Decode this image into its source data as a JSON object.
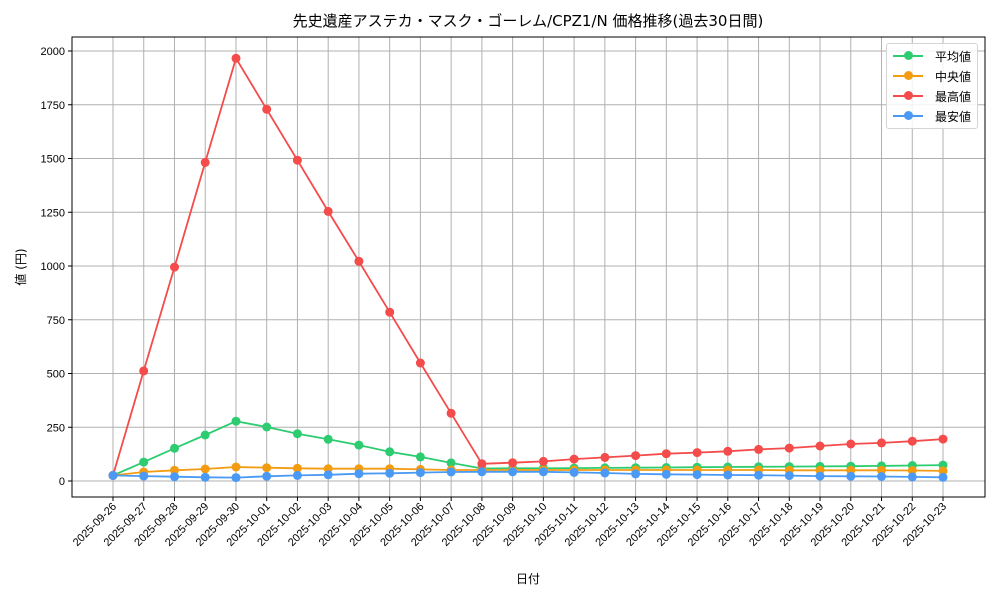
{
  "chart_data": {
    "type": "line",
    "title": "先史遺産アステカ・マスク・ゴーレム/CPZ1/N 価格推移(過去30日間)",
    "xlabel": "日付",
    "ylabel": "値 (円)",
    "ylim": [
      0,
      2000
    ],
    "yticks": [
      0,
      250,
      500,
      750,
      1000,
      1250,
      1500,
      1750,
      2000
    ],
    "grid": true,
    "legend_position": "upper right",
    "categories": [
      "2025-09-26",
      "2025-09-27",
      "2025-09-28",
      "2025-09-29",
      "2025-09-30",
      "2025-10-01",
      "2025-10-02",
      "2025-10-03",
      "2025-10-04",
      "2025-10-05",
      "2025-10-06",
      "2025-10-07",
      "2025-10-08",
      "2025-10-09",
      "2025-10-10",
      "2025-10-11",
      "2025-10-12",
      "2025-10-13",
      "2025-10-14",
      "2025-10-15",
      "2025-10-16",
      "2025-10-17",
      "2025-10-18",
      "2025-10-19",
      "2025-10-20",
      "2025-10-21",
      "2025-10-22",
      "2025-10-23"
    ],
    "series": [
      {
        "name": "平均値",
        "color": "#2ecc71",
        "values": [
          26,
          88,
          152,
          214,
          278,
          251,
          220,
          194,
          167,
          136,
          112,
          84,
          58,
          59,
          59,
          60,
          61,
          62,
          63,
          64,
          65,
          66,
          67,
          68,
          69,
          70,
          72,
          74
        ]
      },
      {
        "name": "中央値",
        "color": "#f39c12",
        "values": [
          26,
          42,
          50,
          56,
          65,
          62,
          59,
          57,
          57,
          57,
          54,
          51,
          51,
          51,
          51,
          51,
          51,
          51,
          51,
          51,
          51,
          51,
          50,
          50,
          50,
          50,
          49,
          47
        ]
      },
      {
        "name": "最高値",
        "color": "#f44b4b",
        "values": [
          26,
          512,
          995,
          1482,
          1966,
          1729,
          1492,
          1254,
          1022,
          785,
          549,
          315,
          80,
          85,
          91,
          102,
          110,
          118,
          127,
          132,
          138,
          147,
          153,
          163,
          172,
          177,
          185,
          195
        ]
      },
      {
        "name": "最安値",
        "color": "#4a9af5",
        "values": [
          26,
          23,
          20,
          17,
          16,
          22,
          26,
          29,
          34,
          36,
          39,
          42,
          43,
          43,
          43,
          40,
          37,
          33,
          31,
          30,
          28,
          27,
          25,
          23,
          22,
          21,
          19,
          17
        ]
      }
    ]
  },
  "legend": {
    "items": [
      {
        "label": "平均値",
        "color": "#2ecc71"
      },
      {
        "label": "中央値",
        "color": "#f39c12"
      },
      {
        "label": "最高値",
        "color": "#f44b4b"
      },
      {
        "label": "最安値",
        "color": "#4a9af5"
      }
    ]
  }
}
